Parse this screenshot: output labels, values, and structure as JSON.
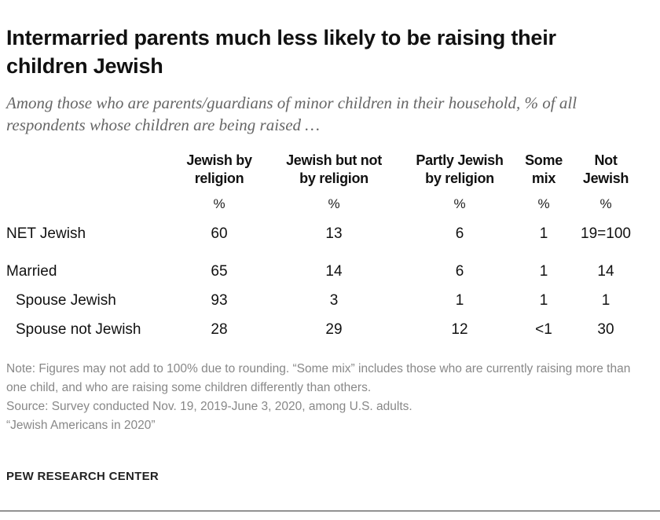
{
  "title": "Intermarried parents much less likely to be raising their children Jewish",
  "subtitle": "Among those who are parents/guardians of minor children in their household, % of all respondents whose children are being raised …",
  "chart_data": {
    "type": "table",
    "columns": [
      "Jewish by religion",
      "Jewish but not by religion",
      "Partly Jewish by religion",
      "Some mix",
      "Not Jewish"
    ],
    "column_headers": [
      [
        "Jewish by",
        "religion"
      ],
      [
        "Jewish but not",
        "by religion"
      ],
      [
        "Partly Jewish",
        "by religion"
      ],
      [
        "Some",
        "mix"
      ],
      [
        "Not",
        "Jewish"
      ]
    ],
    "unit": "%",
    "rows": [
      {
        "label": "NET Jewish",
        "values": [
          "60",
          "13",
          "6",
          "1",
          "19=100"
        ]
      },
      {
        "label": "Married",
        "values": [
          "65",
          "14",
          "6",
          "1",
          "14"
        ]
      },
      {
        "label": "Spouse Jewish",
        "values": [
          "93",
          "3",
          "1",
          "1",
          "1"
        ]
      },
      {
        "label": "Spouse not Jewish",
        "values": [
          "28",
          "29",
          "12",
          "<1",
          "30"
        ]
      }
    ]
  },
  "note": "Note: Figures may not add to 100% due to rounding. “Some mix” includes those who are currently raising more than one child, and who are raising some children differently than others.",
  "source": "Source: Survey conducted Nov. 19, 2019-June 3, 2020, among U.S. adults.",
  "report": "“Jewish Americans in 2020”",
  "brand": "PEW RESEARCH CENTER"
}
